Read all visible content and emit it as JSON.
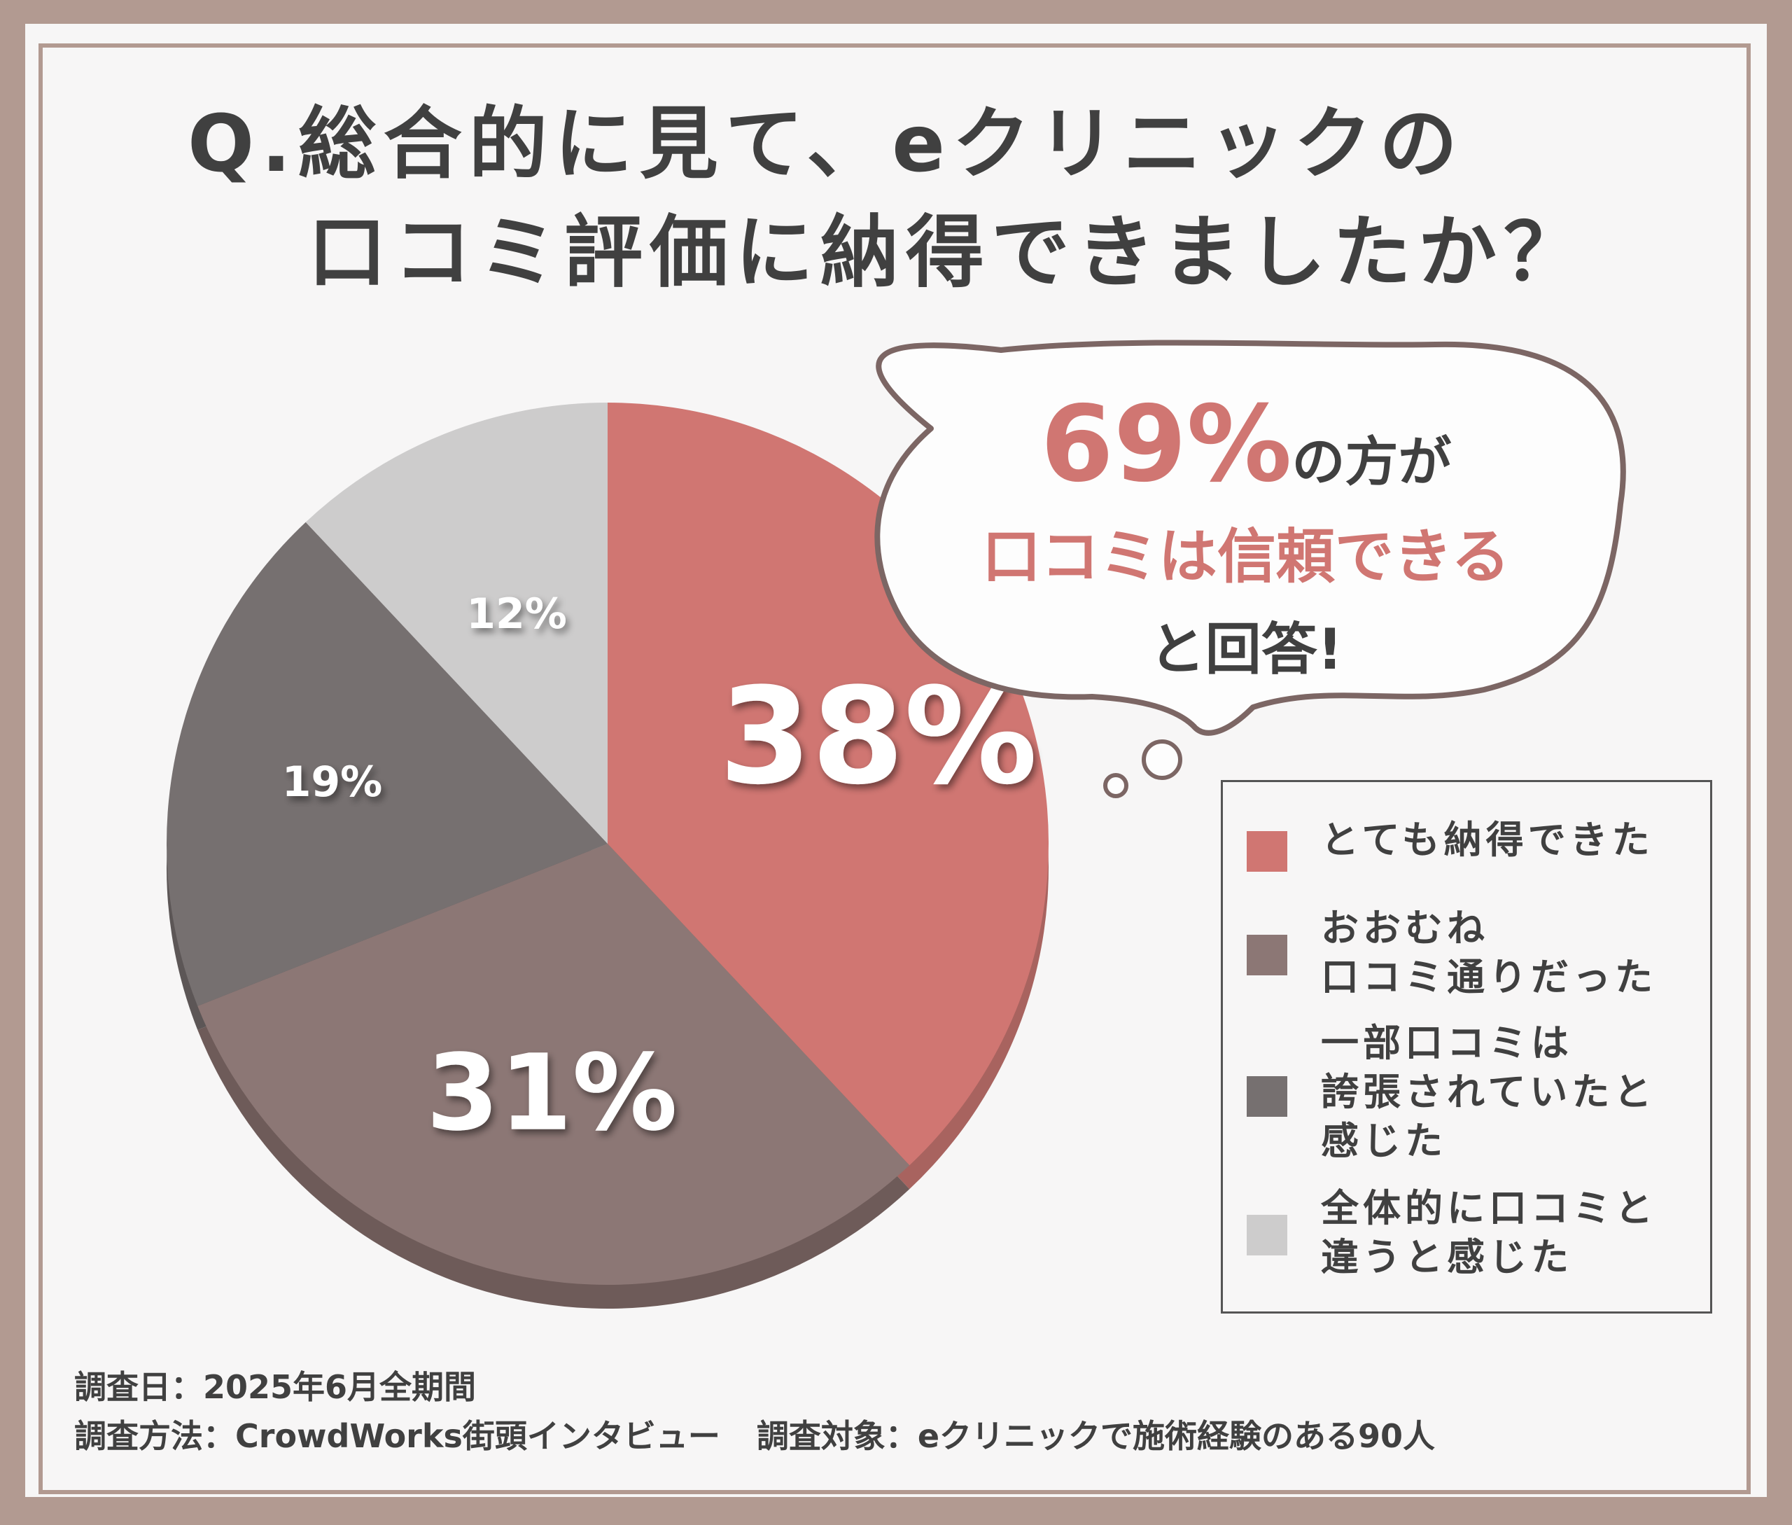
{
  "header": {
    "title_line1": "Q.総合的に見て、eクリニックの",
    "title_line2": "口コミ評価に納得できましたか？"
  },
  "callout": {
    "percent": "69%",
    "suffix": "の方が",
    "line2": "口コミは信頼できる",
    "line3": "と回答!"
  },
  "footer": {
    "survey_date": "調査日：2025年6月全期間",
    "survey_method": "調査方法：CrowdWorks街頭インタビュー",
    "survey_target": "調査対象：eクリニックで施術経験のある90人"
  },
  "colors": {
    "series": [
      "#d07672",
      "#8c7775",
      "#767070",
      "#cdcccc"
    ],
    "accent": "#d07672",
    "text": "#404040",
    "frame": "#b29a91"
  },
  "chart_data": {
    "type": "pie",
    "categories": [
      "とても納得できた",
      "おおむね口コミ通りだった",
      "一部口コミは誇張されていたと感じた",
      "全体的に口コミと違うと感じた"
    ],
    "legend_labels": [
      "とても納得できた",
      "おおむね\n口コミ通りだった",
      "一部口コミは\n誇張されていたと\n感じた",
      "全体的に口コミと\n違うと感じた"
    ],
    "values": [
      38,
      31,
      19,
      12
    ],
    "data_labels": [
      "38%",
      "31%",
      "19%",
      "12%"
    ],
    "legend_position": "right",
    "start": "top, clockwise"
  }
}
